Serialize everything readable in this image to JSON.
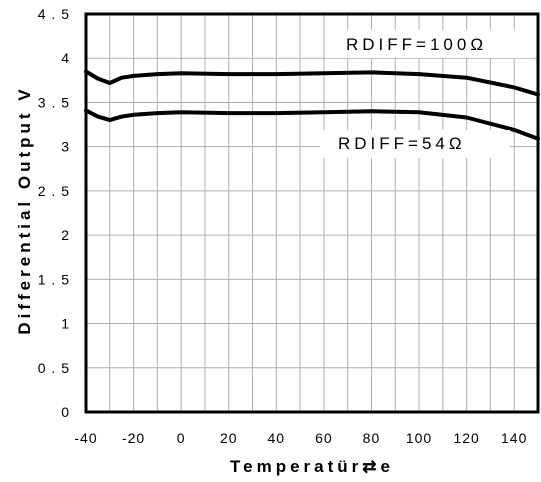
{
  "chart_data": {
    "type": "line",
    "xlabel": "Temperatür⇄e",
    "ylabel": "Differential Output V",
    "xlim": [
      -40,
      150
    ],
    "ylim": [
      0,
      4.5
    ],
    "x_ticks": [
      "-40",
      "-20",
      "0",
      "20",
      "40",
      "60",
      "80",
      "100",
      "120",
      "140"
    ],
    "y_ticks": [
      "0",
      "0.5",
      "1",
      "1.5",
      "2",
      "2.5",
      "3",
      "3.5",
      "4",
      "4.5"
    ],
    "grid": true,
    "series": [
      {
        "name": "RDIFF=100Ω",
        "x": [
          -40,
          -35,
          -30,
          -25,
          -20,
          -10,
          0,
          20,
          40,
          60,
          80,
          100,
          120,
          140,
          150
        ],
        "y": [
          3.85,
          3.77,
          3.72,
          3.78,
          3.8,
          3.82,
          3.83,
          3.82,
          3.82,
          3.83,
          3.84,
          3.82,
          3.78,
          3.67,
          3.59
        ]
      },
      {
        "name": "RDIFF=54Ω",
        "x": [
          -40,
          -35,
          -30,
          -25,
          -20,
          -10,
          0,
          20,
          40,
          60,
          80,
          100,
          120,
          140,
          150
        ],
        "y": [
          3.41,
          3.34,
          3.3,
          3.34,
          3.36,
          3.38,
          3.39,
          3.38,
          3.38,
          3.39,
          3.4,
          3.39,
          3.33,
          3.19,
          3.09
        ]
      }
    ],
    "annotations": [
      "RDIFF=100Ω",
      "RDIFF=54Ω"
    ]
  }
}
